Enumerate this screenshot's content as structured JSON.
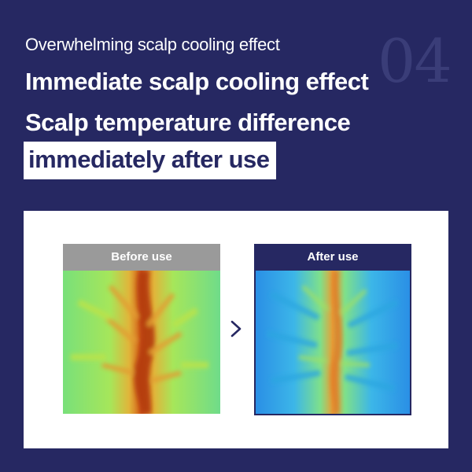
{
  "header": {
    "number": "04",
    "subtitle": "Overwhelming scalp cooling effect",
    "title_line1": "Immediate scalp cooling effect",
    "title_line2": "Scalp temperature difference",
    "title_highlight": "immediately after use"
  },
  "comparison": {
    "before_label": "Before use",
    "after_label": "After use",
    "arrow_icon": "chevron-right-icon"
  },
  "colors": {
    "background": "#262862",
    "accent": "#ffffff",
    "before_header": "#9a9a9a",
    "after_header": "#262862"
  }
}
